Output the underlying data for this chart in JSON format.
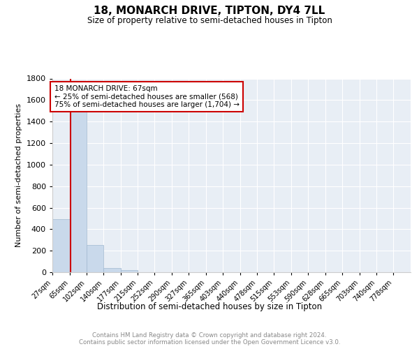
{
  "title": "18, MONARCH DRIVE, TIPTON, DY4 7LL",
  "subtitle": "Size of property relative to semi-detached houses in Tipton",
  "xlabel": "Distribution of semi-detached houses by size in Tipton",
  "ylabel": "Number of semi-detached properties",
  "bar_values": [
    490,
    1500,
    250,
    40,
    20,
    0,
    0,
    0,
    0,
    0,
    0,
    0,
    0,
    0,
    0,
    0,
    0,
    0,
    0,
    0
  ],
  "bar_color": "#c9d9eb",
  "bar_edge_color": "#a0b8d0",
  "property_line_x": 67,
  "smaller_pct": 25,
  "smaller_count": 568,
  "larger_pct": 75,
  "larger_count": 1704,
  "line_color": "#cc0000",
  "ylim": [
    0,
    1800
  ],
  "yticks": [
    0,
    200,
    400,
    600,
    800,
    1000,
    1200,
    1400,
    1600,
    1800
  ],
  "bg_color": "#e8eef5",
  "footer_text": "Contains HM Land Registry data © Crown copyright and database right 2024.\nContains public sector information licensed under the Open Government Licence v3.0.",
  "bin_edges": [
    27,
    65,
    102,
    140,
    177,
    215,
    252,
    290,
    327,
    365,
    403,
    440,
    478,
    515,
    553,
    590,
    628,
    665,
    703,
    740,
    778
  ]
}
